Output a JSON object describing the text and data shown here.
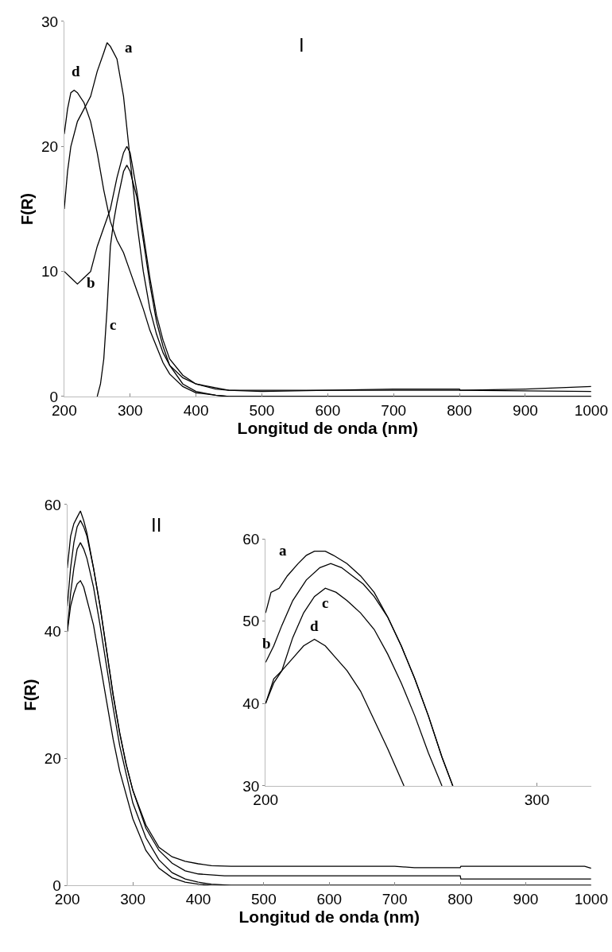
{
  "chart_data": [
    {
      "type": "line",
      "title": "I",
      "xlabel": "Longitud de onda (nm)",
      "ylabel": "F(R)",
      "xlim": [
        200,
        1000
      ],
      "ylim": [
        0,
        30
      ],
      "xticks": [
        200,
        300,
        400,
        500,
        600,
        700,
        800,
        900,
        1000
      ],
      "yticks": [
        0,
        10,
        20,
        30
      ],
      "series": [
        {
          "name": "a",
          "color": "#000000",
          "x": [
            200,
            205,
            210,
            220,
            230,
            240,
            250,
            260,
            265,
            270,
            280,
            290,
            300,
            310,
            320,
            330,
            340,
            350,
            360,
            380,
            400,
            430,
            450,
            500,
            600,
            700,
            800,
            801,
            900,
            1000
          ],
          "values": [
            15,
            18,
            20,
            22,
            23,
            24,
            26,
            27.5,
            28.3,
            28,
            27,
            24,
            19,
            14,
            10,
            7,
            5,
            3.5,
            2.5,
            1.5,
            1,
            0.6,
            0.5,
            0.5,
            0.5,
            0.6,
            0.6,
            0.5,
            0.6,
            0.8
          ]
        },
        {
          "name": "b",
          "color": "#000000",
          "x": [
            200,
            210,
            220,
            230,
            240,
            250,
            260,
            270,
            280,
            290,
            295,
            300,
            310,
            320,
            330,
            340,
            350,
            360,
            380,
            400,
            450,
            500,
            600,
            700,
            800,
            1000
          ],
          "values": [
            10,
            9.5,
            9,
            9.5,
            10,
            12,
            13.5,
            15,
            17.5,
            19.5,
            20,
            19.5,
            16.5,
            13,
            9.5,
            6.5,
            4.5,
            3,
            1.7,
            1,
            0.5,
            0.4,
            0.5,
            0.5,
            0.5,
            0.4
          ]
        },
        {
          "name": "c",
          "color": "#000000",
          "x": [
            250,
            255,
            260,
            265,
            270,
            275,
            280,
            290,
            295,
            300,
            310,
            320,
            330,
            340,
            350,
            360,
            380,
            400,
            430,
            450,
            1000
          ],
          "values": [
            0,
            1,
            3,
            7,
            12,
            14,
            15.5,
            18,
            18.5,
            18,
            16,
            12.5,
            9,
            6,
            4,
            2.5,
            1,
            0.4,
            0.1,
            0,
            0
          ]
        },
        {
          "name": "d",
          "color": "#000000",
          "x": [
            200,
            205,
            210,
            215,
            220,
            230,
            240,
            250,
            260,
            270,
            280,
            290,
            300,
            310,
            320,
            330,
            340,
            350,
            360,
            380,
            400,
            430,
            450,
            1000
          ],
          "values": [
            21,
            23,
            24.3,
            24.5,
            24.3,
            23.5,
            22,
            19.5,
            16.5,
            14,
            12.5,
            11.5,
            10,
            8.5,
            7,
            5.3,
            4,
            2.7,
            1.8,
            0.8,
            0.3,
            0.1,
            0,
            0
          ]
        }
      ]
    },
    {
      "type": "line",
      "title": "II",
      "xlabel": "Longitud de onda (nm)",
      "ylabel": "F(R)",
      "xlim": [
        200,
        1000
      ],
      "ylim": [
        0,
        60
      ],
      "xticks": [
        200,
        300,
        400,
        500,
        600,
        700,
        800,
        900,
        1000
      ],
      "yticks": [
        0,
        20,
        40,
        60
      ],
      "series": [
        {
          "color": "#000000",
          "x": [
            200,
            205,
            210,
            215,
            220,
            225,
            230,
            240,
            250,
            260,
            270,
            280,
            290,
            300,
            320,
            340,
            360,
            380,
            400,
            420,
            450,
            500,
            600,
            700,
            730,
            800,
            801,
            900,
            990,
            1000
          ],
          "values": [
            50,
            55,
            57,
            58,
            59,
            57.5,
            55.5,
            50,
            44,
            37,
            30,
            24,
            19,
            15,
            9.5,
            6,
            4.5,
            3.8,
            3.4,
            3.1,
            3,
            3,
            3,
            3,
            2.8,
            2.8,
            3,
            3,
            3,
            2.7
          ]
        },
        {
          "color": "#000000",
          "x": [
            200,
            205,
            210,
            215,
            220,
            225,
            230,
            240,
            250,
            260,
            270,
            280,
            290,
            300,
            320,
            340,
            360,
            380,
            400,
            440,
            500,
            600,
            700,
            800,
            801,
            900,
            1000
          ],
          "values": [
            44,
            50,
            54,
            56.5,
            57.5,
            56.5,
            55,
            50,
            44,
            37,
            30,
            24,
            19,
            15,
            9,
            5.5,
            3.5,
            2.3,
            1.8,
            1.5,
            1.5,
            1.5,
            1.5,
            1.5,
            1,
            1,
            1
          ]
        },
        {
          "color": "#000000",
          "x": [
            200,
            205,
            210,
            215,
            220,
            225,
            230,
            240,
            250,
            260,
            270,
            280,
            300,
            320,
            340,
            360,
            380,
            400,
            420,
            450,
            500,
            1000
          ],
          "values": [
            40,
            46,
            50,
            53,
            54,
            53,
            51.5,
            47,
            41,
            34.5,
            28,
            22,
            13,
            7.5,
            4,
            2,
            1,
            0.5,
            0.2,
            0,
            0,
            0
          ]
        },
        {
          "color": "#000000",
          "x": [
            200,
            205,
            210,
            215,
            220,
            225,
            230,
            240,
            250,
            260,
            270,
            280,
            300,
            320,
            340,
            360,
            380,
            400,
            420,
            450,
            1000
          ],
          "values": [
            40,
            44,
            46,
            47.5,
            48,
            47,
            45,
            41,
            35,
            29,
            23,
            18,
            10.5,
            5.5,
            2.7,
            1.2,
            0.5,
            0.2,
            0,
            0,
            0
          ]
        }
      ]
    },
    {
      "type": "line",
      "xlim": [
        200,
        320
      ],
      "ylim": [
        30,
        60
      ],
      "xticks": [
        200,
        300
      ],
      "yticks": [
        30,
        40,
        50,
        60
      ],
      "series": [
        {
          "name": "a",
          "color": "#000000",
          "x": [
            200,
            202,
            205,
            208,
            212,
            215,
            218,
            222,
            225,
            230,
            235,
            240,
            245,
            250,
            255,
            260,
            265,
            269
          ],
          "values": [
            51,
            53.5,
            54,
            55.5,
            57,
            58,
            58.5,
            58.5,
            58,
            57,
            55.5,
            53.5,
            50.5,
            47,
            43,
            38.5,
            33.5,
            30
          ]
        },
        {
          "name": "b",
          "color": "#000000",
          "x": [
            200,
            203,
            206,
            210,
            215,
            220,
            224,
            228,
            232,
            236,
            240,
            245,
            250,
            255,
            260,
            265,
            269
          ],
          "values": [
            45,
            47,
            49.5,
            52.5,
            55,
            56.5,
            57,
            56.5,
            55.5,
            54.5,
            53,
            50.5,
            47,
            43,
            38.5,
            33.5,
            30
          ]
        },
        {
          "name": "c",
          "color": "#000000",
          "x": [
            200,
            203,
            206,
            210,
            214,
            218,
            222,
            226,
            230,
            235,
            240,
            245,
            250,
            255,
            260,
            265
          ],
          "values": [
            40,
            42.5,
            44,
            48,
            51,
            53,
            54,
            53.5,
            52.5,
            51,
            49,
            46,
            42.5,
            38.5,
            34,
            30
          ]
        },
        {
          "name": "d",
          "color": "#000000",
          "x": [
            200,
            203,
            206,
            210,
            214,
            218,
            222,
            226,
            230,
            235,
            240,
            245,
            251
          ],
          "values": [
            40,
            43,
            44,
            45.5,
            47,
            47.8,
            47,
            45.5,
            44,
            41.5,
            38,
            34.5,
            30
          ]
        }
      ]
    }
  ]
}
